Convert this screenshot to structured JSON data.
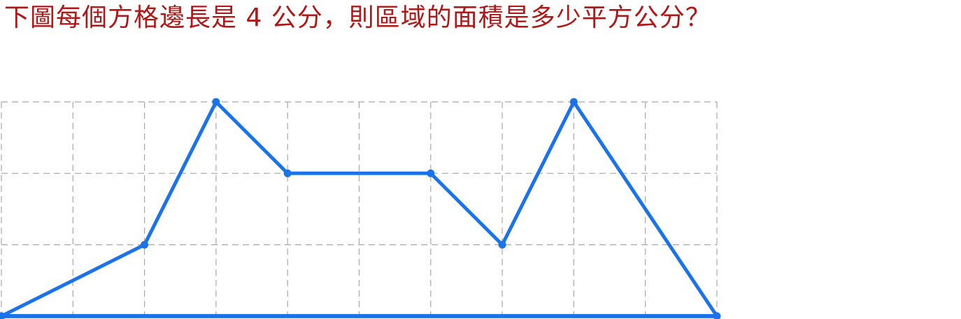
{
  "question": {
    "text": "下圖每個方格邊長是 4 公分，則區域的面積是多少平方公分？",
    "color": "#b01818"
  },
  "grid": {
    "columns": 10,
    "rows": 3,
    "square_side_cm": 4,
    "line_color": "#a8a8a8"
  },
  "region": {
    "color": "#1a73e8",
    "vertices": [
      [
        0,
        0
      ],
      [
        2,
        1
      ],
      [
        3,
        3
      ],
      [
        4,
        2
      ],
      [
        6,
        2
      ],
      [
        7,
        1
      ],
      [
        8,
        3
      ],
      [
        10,
        0
      ]
    ]
  }
}
